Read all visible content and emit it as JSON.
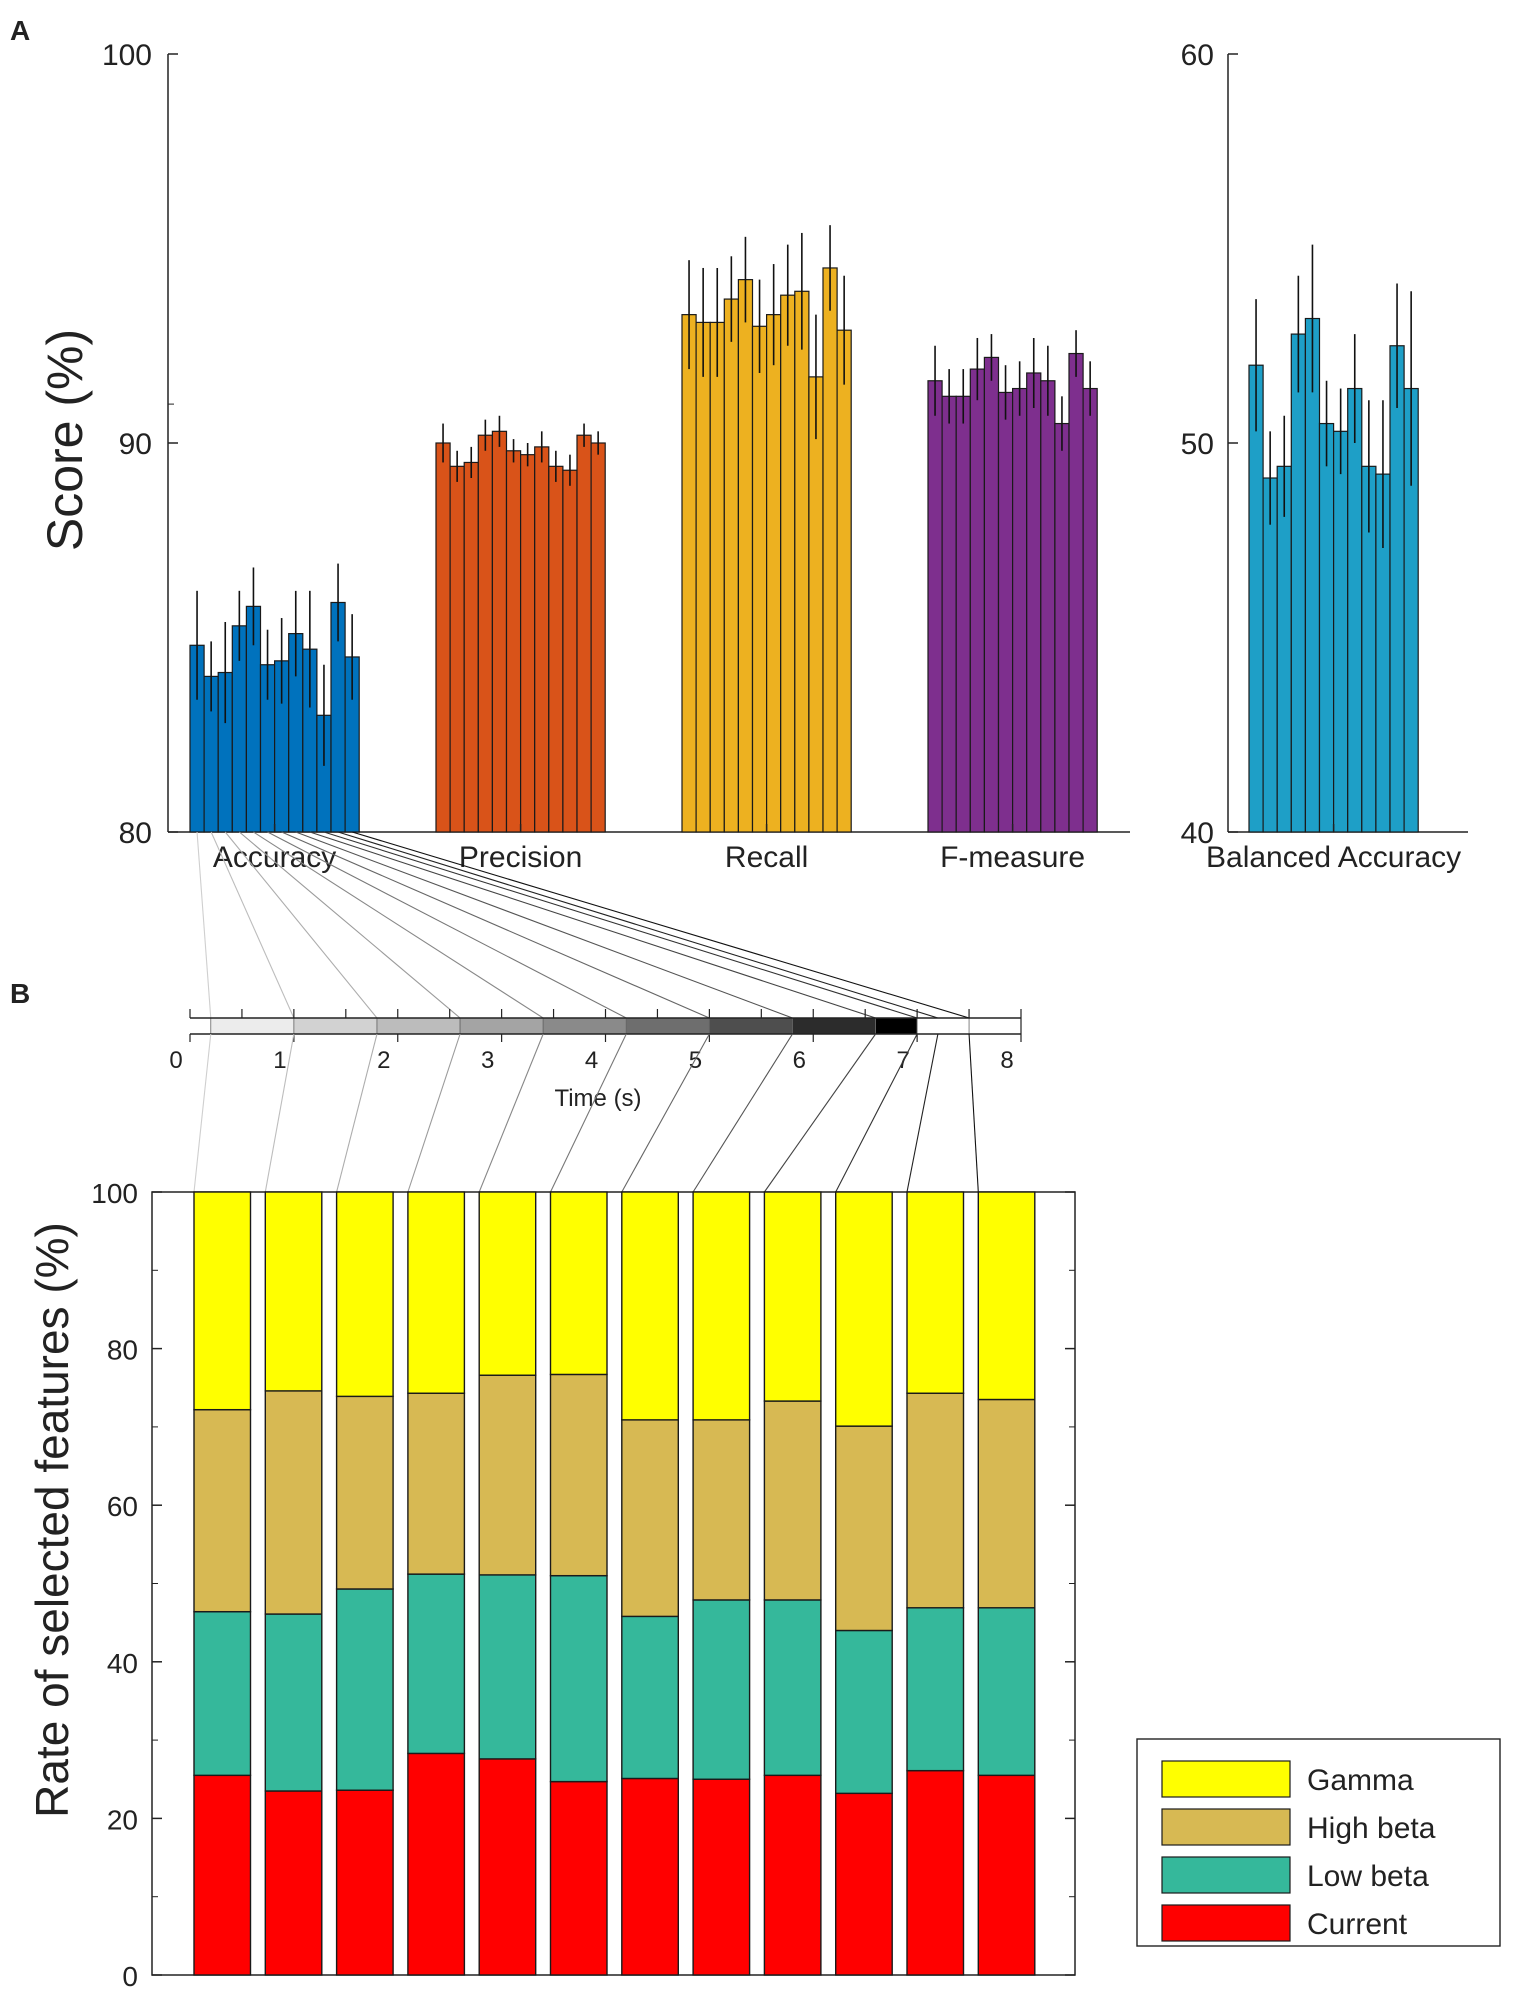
{
  "figure": {
    "panel_a_label": "A",
    "panel_b_label": "B"
  },
  "chart_data": [
    {
      "type": "bar",
      "panel": "A",
      "ylabel": "Score (%)",
      "ylim": [
        80,
        100
      ],
      "yticks": [
        80,
        90,
        100
      ],
      "categories": [
        "Accuracy",
        "Precision",
        "Recall",
        "F-measure"
      ],
      "colors": [
        "#0072BD",
        "#D95319",
        "#EDB120",
        "#7E2F8E"
      ],
      "values": [
        [
          84.8,
          84.0,
          84.1,
          85.3,
          85.8,
          84.3,
          84.4,
          85.1,
          84.7,
          83.0,
          85.9,
          84.5
        ],
        [
          90.0,
          89.4,
          89.5,
          90.2,
          90.3,
          89.8,
          89.7,
          89.9,
          89.4,
          89.3,
          90.2,
          90.0
        ],
        [
          93.3,
          93.1,
          93.1,
          93.7,
          94.2,
          93.0,
          93.3,
          93.8,
          93.9,
          91.7,
          94.5,
          92.9
        ],
        [
          91.6,
          91.2,
          91.2,
          91.9,
          92.2,
          91.3,
          91.4,
          91.8,
          91.6,
          90.5,
          92.3,
          91.4
        ]
      ],
      "errors": [
        [
          1.4,
          0.9,
          1.3,
          0.9,
          1.0,
          0.9,
          1.1,
          1.1,
          1.5,
          1.3,
          1.0,
          1.1
        ],
        [
          0.5,
          0.4,
          0.4,
          0.4,
          0.4,
          0.3,
          0.3,
          0.4,
          0.4,
          0.4,
          0.3,
          0.3
        ],
        [
          1.4,
          1.4,
          1.4,
          1.1,
          1.1,
          1.2,
          1.3,
          1.3,
          1.5,
          1.6,
          1.1,
          1.4
        ],
        [
          0.9,
          0.7,
          0.7,
          0.8,
          0.6,
          0.7,
          0.7,
          0.9,
          0.9,
          0.7,
          0.6,
          0.7
        ]
      ]
    },
    {
      "type": "bar",
      "panel": "A",
      "ylim": [
        40,
        60
      ],
      "yticks": [
        40,
        50,
        60
      ],
      "categories": [
        "Balanced Accuracy"
      ],
      "colors": [
        "#1E9FC7"
      ],
      "values": [
        [
          52.0,
          49.1,
          49.4,
          52.8,
          53.2,
          50.5,
          50.3,
          51.4,
          49.4,
          49.2,
          52.5,
          51.4
        ]
      ],
      "errors": [
        [
          1.7,
          1.2,
          1.3,
          1.5,
          1.9,
          1.1,
          1.1,
          1.4,
          1.7,
          1.9,
          1.6,
          2.5
        ]
      ]
    },
    {
      "type": "bar",
      "panel": "B-timeline",
      "xlabel": "Time (s)",
      "xlim": [
        0,
        8
      ],
      "xticks": [
        0,
        1,
        2,
        3,
        4,
        5,
        6,
        7,
        8
      ],
      "window_edges": [
        0.2,
        1.0,
        1.8,
        2.6,
        3.4,
        4.2,
        5.0,
        5.8,
        6.6,
        7.0,
        7.5
      ],
      "window_shades": [
        "#ececec",
        "#d2d2d2",
        "#bcbcbc",
        "#a4a4a4",
        "#8a8a8a",
        "#6e6e6e",
        "#4e4e4e",
        "#2c2c2c",
        "#000000",
        "#ffffff"
      ]
    },
    {
      "type": "bar",
      "stacked": true,
      "panel": "B",
      "ylabel": "Rate of selected features (%)",
      "ylim": [
        0,
        100
      ],
      "yticks": [
        0,
        20,
        40,
        60,
        80,
        100
      ],
      "series": [
        {
          "name": "Current",
          "color": "#FF0000",
          "values": [
            25.5,
            23.5,
            23.6,
            28.3,
            27.6,
            24.7,
            25.1,
            25.0,
            25.5,
            23.2,
            26.1,
            25.5
          ]
        },
        {
          "name": "Low beta",
          "color": "#35B89B",
          "values": [
            20.9,
            22.6,
            25.7,
            22.9,
            23.5,
            26.3,
            20.7,
            22.9,
            22.4,
            20.8,
            20.8,
            21.4
          ]
        },
        {
          "name": "High beta",
          "color": "#D7B953",
          "values": [
            25.8,
            28.5,
            24.6,
            23.1,
            25.5,
            25.7,
            25.1,
            23.0,
            25.4,
            26.1,
            27.4,
            26.6
          ]
        },
        {
          "name": "Gamma",
          "color": "#FFFF00",
          "values": [
            27.8,
            25.4,
            26.1,
            25.7,
            23.4,
            23.3,
            29.1,
            29.1,
            26.7,
            29.9,
            25.7,
            26.5
          ]
        }
      ],
      "legend": [
        "Gamma",
        "High beta",
        "Low beta",
        "Current"
      ],
      "legend_position": "bottom-right"
    }
  ]
}
